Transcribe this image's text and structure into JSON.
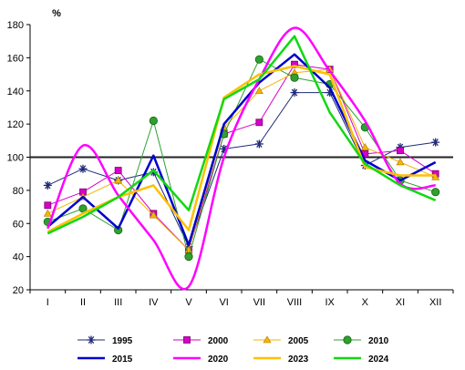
{
  "chart_data": {
    "type": "line",
    "unit_label": "%",
    "categories": [
      "I",
      "II",
      "III",
      "IV",
      "V",
      "VI",
      "VII",
      "VIII",
      "IX",
      "X",
      "XI",
      "XII"
    ],
    "ylim": [
      20,
      180
    ],
    "yticks": [
      20,
      40,
      60,
      80,
      100,
      120,
      140,
      160,
      180
    ],
    "grid": false,
    "reference_line": 100,
    "legend_position": "bottom",
    "series": [
      {
        "name": "1995",
        "color": "#1f2a7a",
        "marker": "asterisk",
        "smooth": false,
        "width": 1,
        "values": [
          83,
          93,
          86,
          91,
          46,
          105,
          108,
          139,
          139,
          95,
          106,
          109
        ]
      },
      {
        "name": "2000",
        "color": "#d600c6",
        "marker": "square",
        "smooth": false,
        "width": 1,
        "values": [
          71,
          79,
          92,
          66,
          44,
          114,
          121,
          156,
          153,
          102,
          104,
          90
        ]
      },
      {
        "name": "2005",
        "color": "#f5b400",
        "marker": "triangle",
        "smooth": false,
        "width": 1,
        "values": [
          66,
          76,
          86,
          65,
          44,
          118,
          140,
          151,
          153,
          106,
          97,
          88
        ]
      },
      {
        "name": "2010",
        "color": "#2fa02f",
        "marker": "circle",
        "smooth": false,
        "width": 1,
        "values": [
          61,
          69,
          56,
          122,
          40,
          114,
          159,
          148,
          144,
          118,
          86,
          79
        ]
      },
      {
        "name": "2015",
        "color": "#0000cc",
        "marker": "none",
        "smooth": false,
        "width": 2.5,
        "values": [
          58,
          76,
          57,
          101,
          47,
          120,
          145,
          162,
          142,
          98,
          86,
          97
        ]
      },
      {
        "name": "2020",
        "color": "#ff00ff",
        "marker": "none",
        "smooth": true,
        "width": 2.5,
        "values": [
          57,
          107,
          77,
          50,
          22,
          100,
          147,
          178,
          152,
          122,
          84,
          83
        ]
      },
      {
        "name": "2023",
        "color": "#ffc000",
        "marker": "none",
        "smooth": false,
        "width": 2.5,
        "values": [
          55,
          66,
          76,
          83,
          56,
          136,
          150,
          155,
          150,
          94,
          89,
          89
        ]
      },
      {
        "name": "2024",
        "color": "#11d811",
        "marker": "none",
        "smooth": false,
        "width": 2.5,
        "values": [
          54,
          64,
          76,
          92,
          68,
          135,
          147,
          173,
          127,
          96,
          83,
          74
        ]
      }
    ]
  }
}
